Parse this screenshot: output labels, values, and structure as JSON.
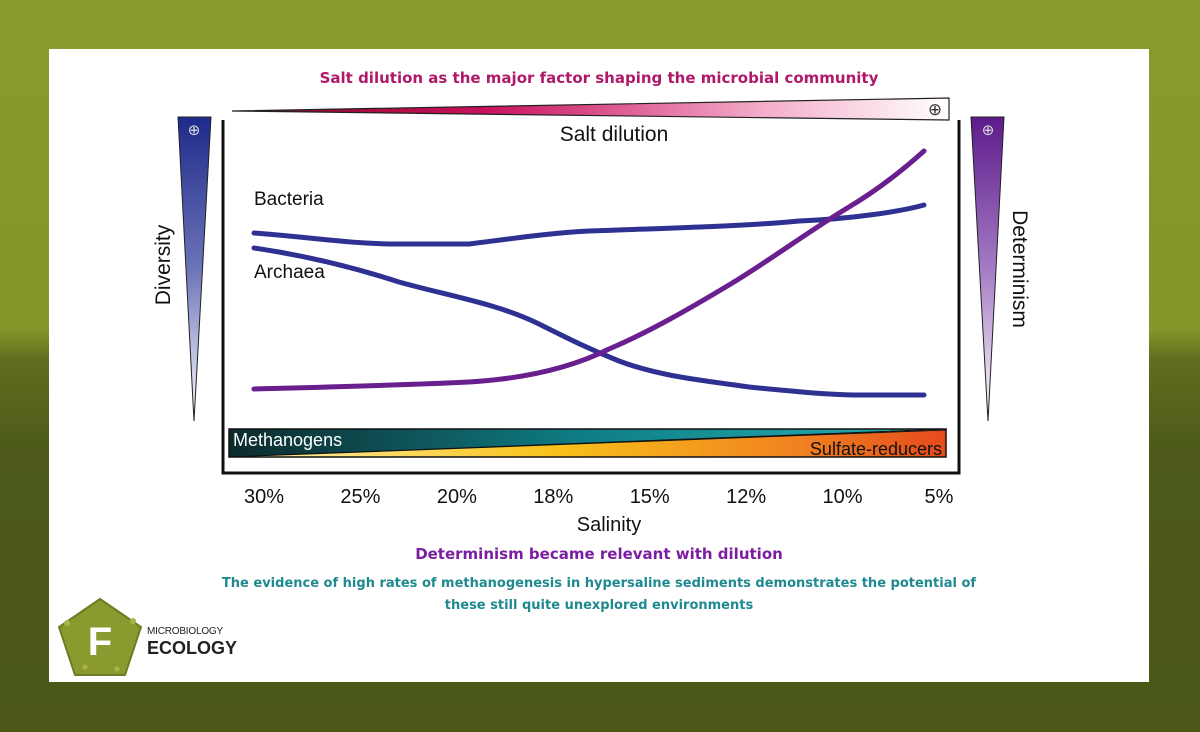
{
  "header": {
    "title": "Salt dilution as the major factor shaping the microbial community"
  },
  "diagram": {
    "salt_label": "Salt dilution",
    "diversity_label": "Diversity",
    "determinism_label": "Determinism",
    "bacteria_label": "Bacteria",
    "archaea_label": "Archaea",
    "methanogens_label": "Methanogens",
    "sulfate_label": "Sulfate-reducers",
    "plus_symbol": "⊕",
    "xaxis_title": "Salinity",
    "x_ticks": [
      "30%",
      "25%",
      "20%",
      "18%",
      "15%",
      "12%",
      "10%",
      "5%"
    ]
  },
  "footer": {
    "determinism_note": "Determinism became relevant with dilution",
    "evidence_line1": "The evidence of high rates of methanogenesis in hypersaline sediments demonstrates the potential of",
    "evidence_line2": "these still quite unexplored environments"
  },
  "logo": {
    "letter": "F",
    "small": "MICROBIOLOGY",
    "big": "ECOLOGY"
  },
  "colors": {
    "title": "#b0186a",
    "note_purple": "#7b1ea2",
    "note_teal": "#1e8a8f",
    "bacteria": "#2e3192",
    "determinism_curve": "#6a1f8f",
    "logo_green": "#8a9a2e"
  }
}
